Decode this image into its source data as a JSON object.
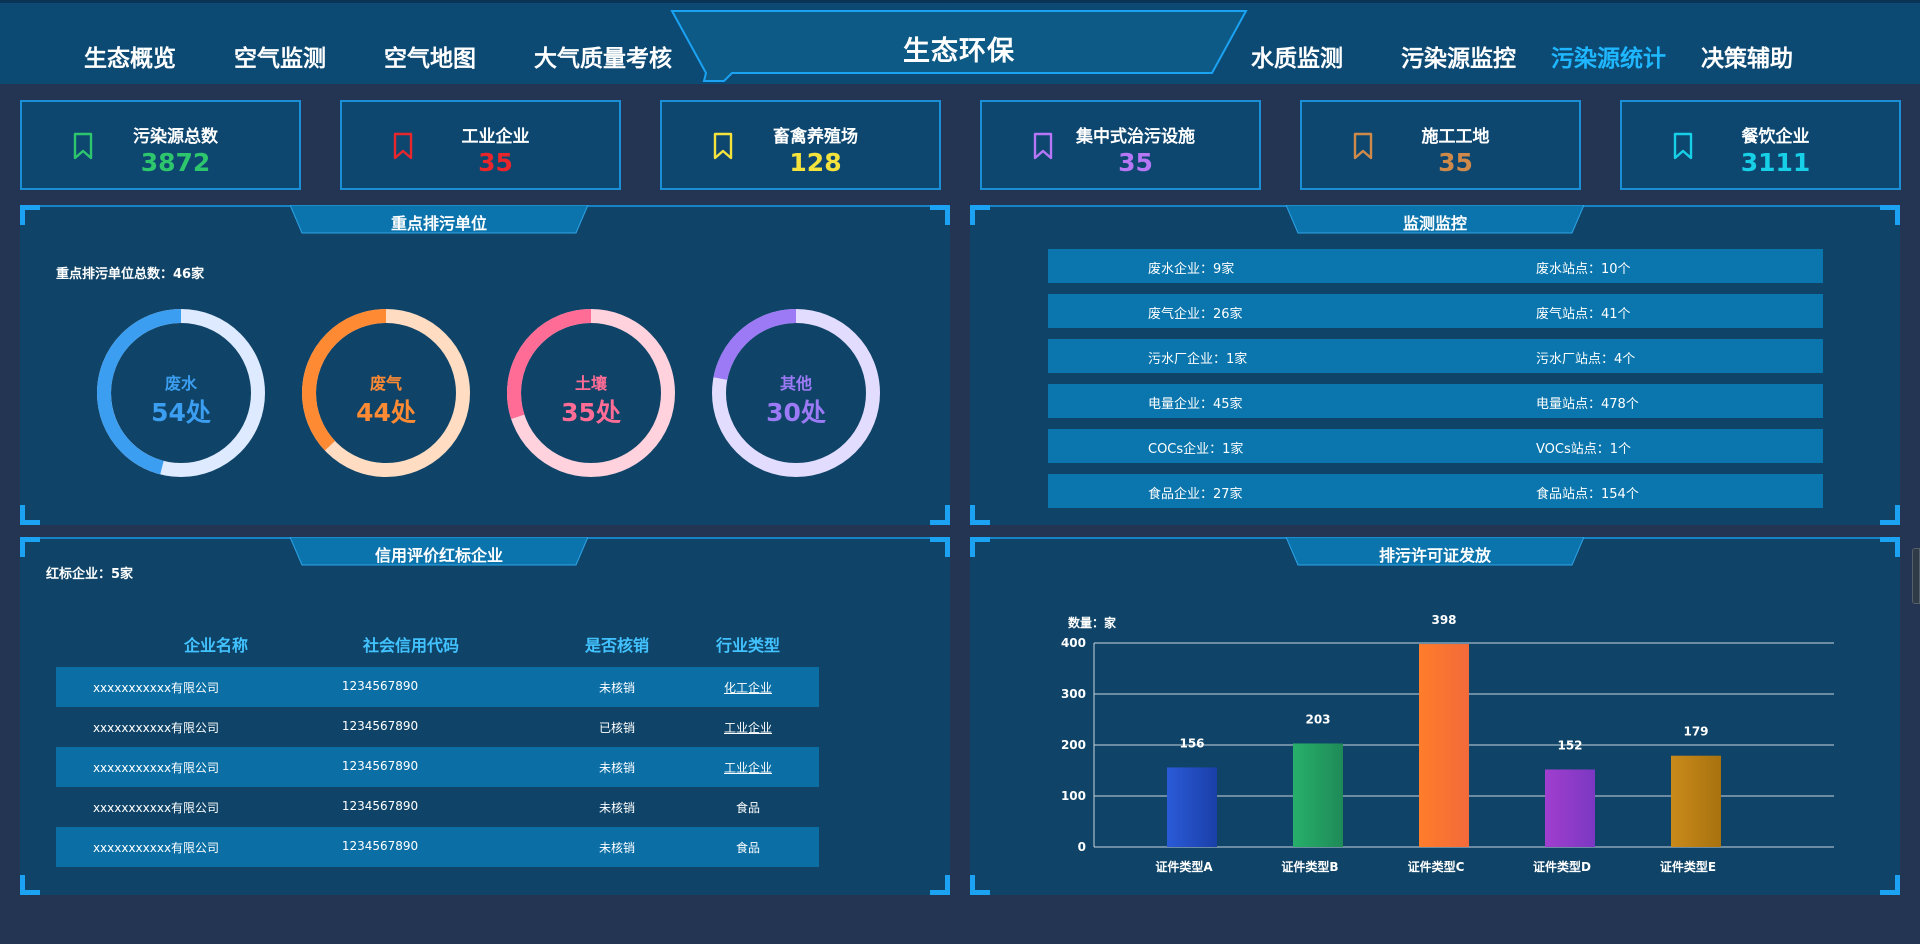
{
  "nav": {
    "title": "生态环保",
    "left_items": [
      "生态概览",
      "空气监测",
      "空气地图",
      "大气质量考核"
    ],
    "right_items": [
      "水质监测",
      "污染源监控",
      "污染源统计",
      "决策辅助"
    ],
    "active": "污染源统计"
  },
  "stats": [
    {
      "label": "污染源总数",
      "value": "3872",
      "color": "#2dc66d",
      "icon": "bookmark-icon"
    },
    {
      "label": "工业企业",
      "value": "35",
      "color": "#e8262b",
      "icon": "bookmark-icon"
    },
    {
      "label": "畜禽养殖场",
      "value": "128",
      "color": "#f4e33c",
      "icon": "bookmark-icon"
    },
    {
      "label": "集中式治污设施",
      "value": "35",
      "color": "#b676f6",
      "icon": "bookmark-icon"
    },
    {
      "label": "施工工地",
      "value": "35",
      "color": "#cf8a4a",
      "icon": "bookmark-icon"
    },
    {
      "label": "餐饮企业",
      "value": "3111",
      "color": "#17cfe6",
      "icon": "bookmark-icon"
    }
  ],
  "key_units": {
    "title": "重点排污单位",
    "total": "重点排污单位总数：46家",
    "donuts": [
      {
        "label": "废水",
        "value": "54处",
        "percent": 0.46,
        "color": "#3c9ef0",
        "track": "#deeaff"
      },
      {
        "label": "废气",
        "value": "44处",
        "percent": 0.37,
        "color": "#ff8a34",
        "track": "#ffdcc2"
      },
      {
        "label": "土壤",
        "value": "35处",
        "percent": 0.3,
        "color": "#ff6c95",
        "track": "#ffd2dd"
      },
      {
        "label": "其他",
        "value": "30处",
        "percent": 0.22,
        "color": "#9c7af5",
        "track": "#e2dcff"
      }
    ]
  },
  "monitoring": {
    "title": "监测监控",
    "rows": [
      {
        "left": "废水企业：9家",
        "right": "废水站点：10个"
      },
      {
        "left": "废气企业：26家",
        "right": "废气站点：41个"
      },
      {
        "left": "污水厂企业：1家",
        "right": "污水厂站点：4个"
      },
      {
        "left": "电量企业：45家",
        "right": "电量站点：478个"
      },
      {
        "left": "COCs企业：1家",
        "right": "VOCs站点：1个"
      },
      {
        "left": "食品企业：27家",
        "right": "食品站点：154个"
      }
    ]
  },
  "credit": {
    "title": "信用评价红标企业",
    "count": "红标企业：5家",
    "headers": [
      "企业名称",
      "社会信用代码",
      "是否核销",
      "行业类型"
    ],
    "rows": [
      [
        "xxxxxxxxxxx有限公司",
        "1234567890",
        "未核销",
        "化工企业"
      ],
      [
        "xxxxxxxxxxx有限公司",
        "1234567890",
        "已核销",
        "工业企业"
      ],
      [
        "xxxxxxxxxxx有限公司",
        "1234567890",
        "未核销",
        "工业企业"
      ],
      [
        "xxxxxxxxxxx有限公司",
        "1234567890",
        "未核销",
        "食品"
      ],
      [
        "xxxxxxxxxxx有限公司",
        "1234567890",
        "未核销",
        "食品"
      ]
    ]
  },
  "permits": {
    "title": "排污许可证发放"
  },
  "chart_data": {
    "type": "bar",
    "title": "排污许可证发放",
    "ylabel": "数量：家",
    "categories": [
      "证件类型A",
      "证件类型B",
      "证件类型C",
      "证件类型D",
      "证件类型E"
    ],
    "values": [
      156,
      203,
      398,
      152,
      179
    ],
    "yticks": [
      0,
      100,
      200,
      300,
      400
    ],
    "ylim": [
      0,
      400
    ],
    "grid": true,
    "colors": [
      [
        "#2b5bd8",
        "#1a3fa8"
      ],
      [
        "#27b06a",
        "#1f8a58"
      ],
      [
        "#ff7d2a",
        "#f26a3a"
      ],
      [
        "#a13ecf",
        "#7b38c2"
      ],
      [
        "#c98a1a",
        "#a8720f"
      ]
    ]
  }
}
